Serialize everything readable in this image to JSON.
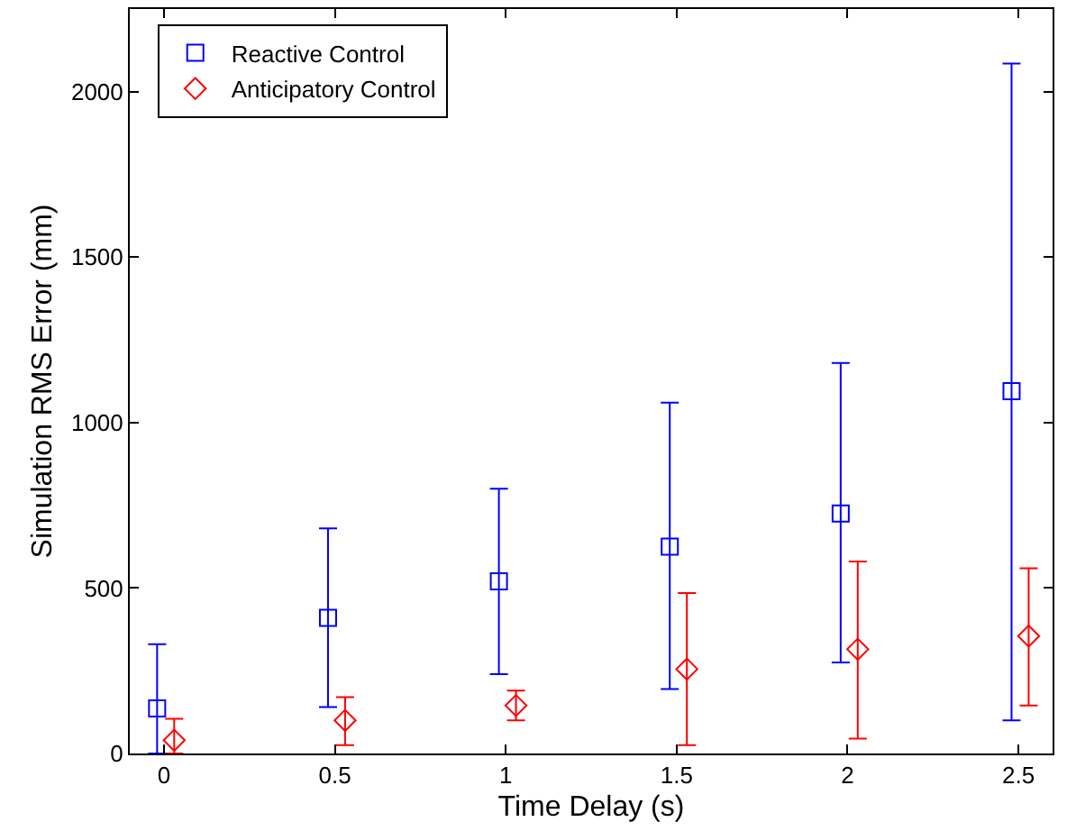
{
  "chart_data": {
    "type": "scatter",
    "xlabel": "Time Delay (s)",
    "ylabel": "Simulation RMS Error (mm)",
    "xlim": [
      -0.1,
      2.6
    ],
    "ylim": [
      0,
      2250
    ],
    "xticks": [
      0,
      0.5,
      1,
      1.5,
      2,
      2.5
    ],
    "yticks": [
      0,
      500,
      1000,
      1500,
      2000
    ],
    "grid": false,
    "legend": "top left",
    "series": [
      {
        "name": "Reactive Control",
        "color": "#0000ff",
        "marker": "square",
        "x": [
          -0.02,
          0.48,
          0.98,
          1.48,
          1.98,
          2.48
        ],
        "values": [
          136,
          410,
          520,
          625,
          725,
          1095
        ],
        "errors": [
          [
            0,
            330
          ],
          [
            140,
            680
          ],
          [
            240,
            800
          ],
          [
            195,
            1060
          ],
          [
            275,
            1180
          ],
          [
            100,
            2085
          ]
        ]
      },
      {
        "name": "Anticipatory Control",
        "color": "#ff0000",
        "marker": "diamond",
        "x": [
          0.03,
          0.53,
          1.03,
          1.53,
          2.03,
          2.53
        ],
        "values": [
          40,
          100,
          145,
          255,
          315,
          355
        ],
        "errors": [
          [
            0,
            105
          ],
          [
            25,
            170
          ],
          [
            100,
            190
          ],
          [
            25,
            485
          ],
          [
            45,
            580
          ],
          [
            145,
            560
          ]
        ]
      }
    ]
  }
}
